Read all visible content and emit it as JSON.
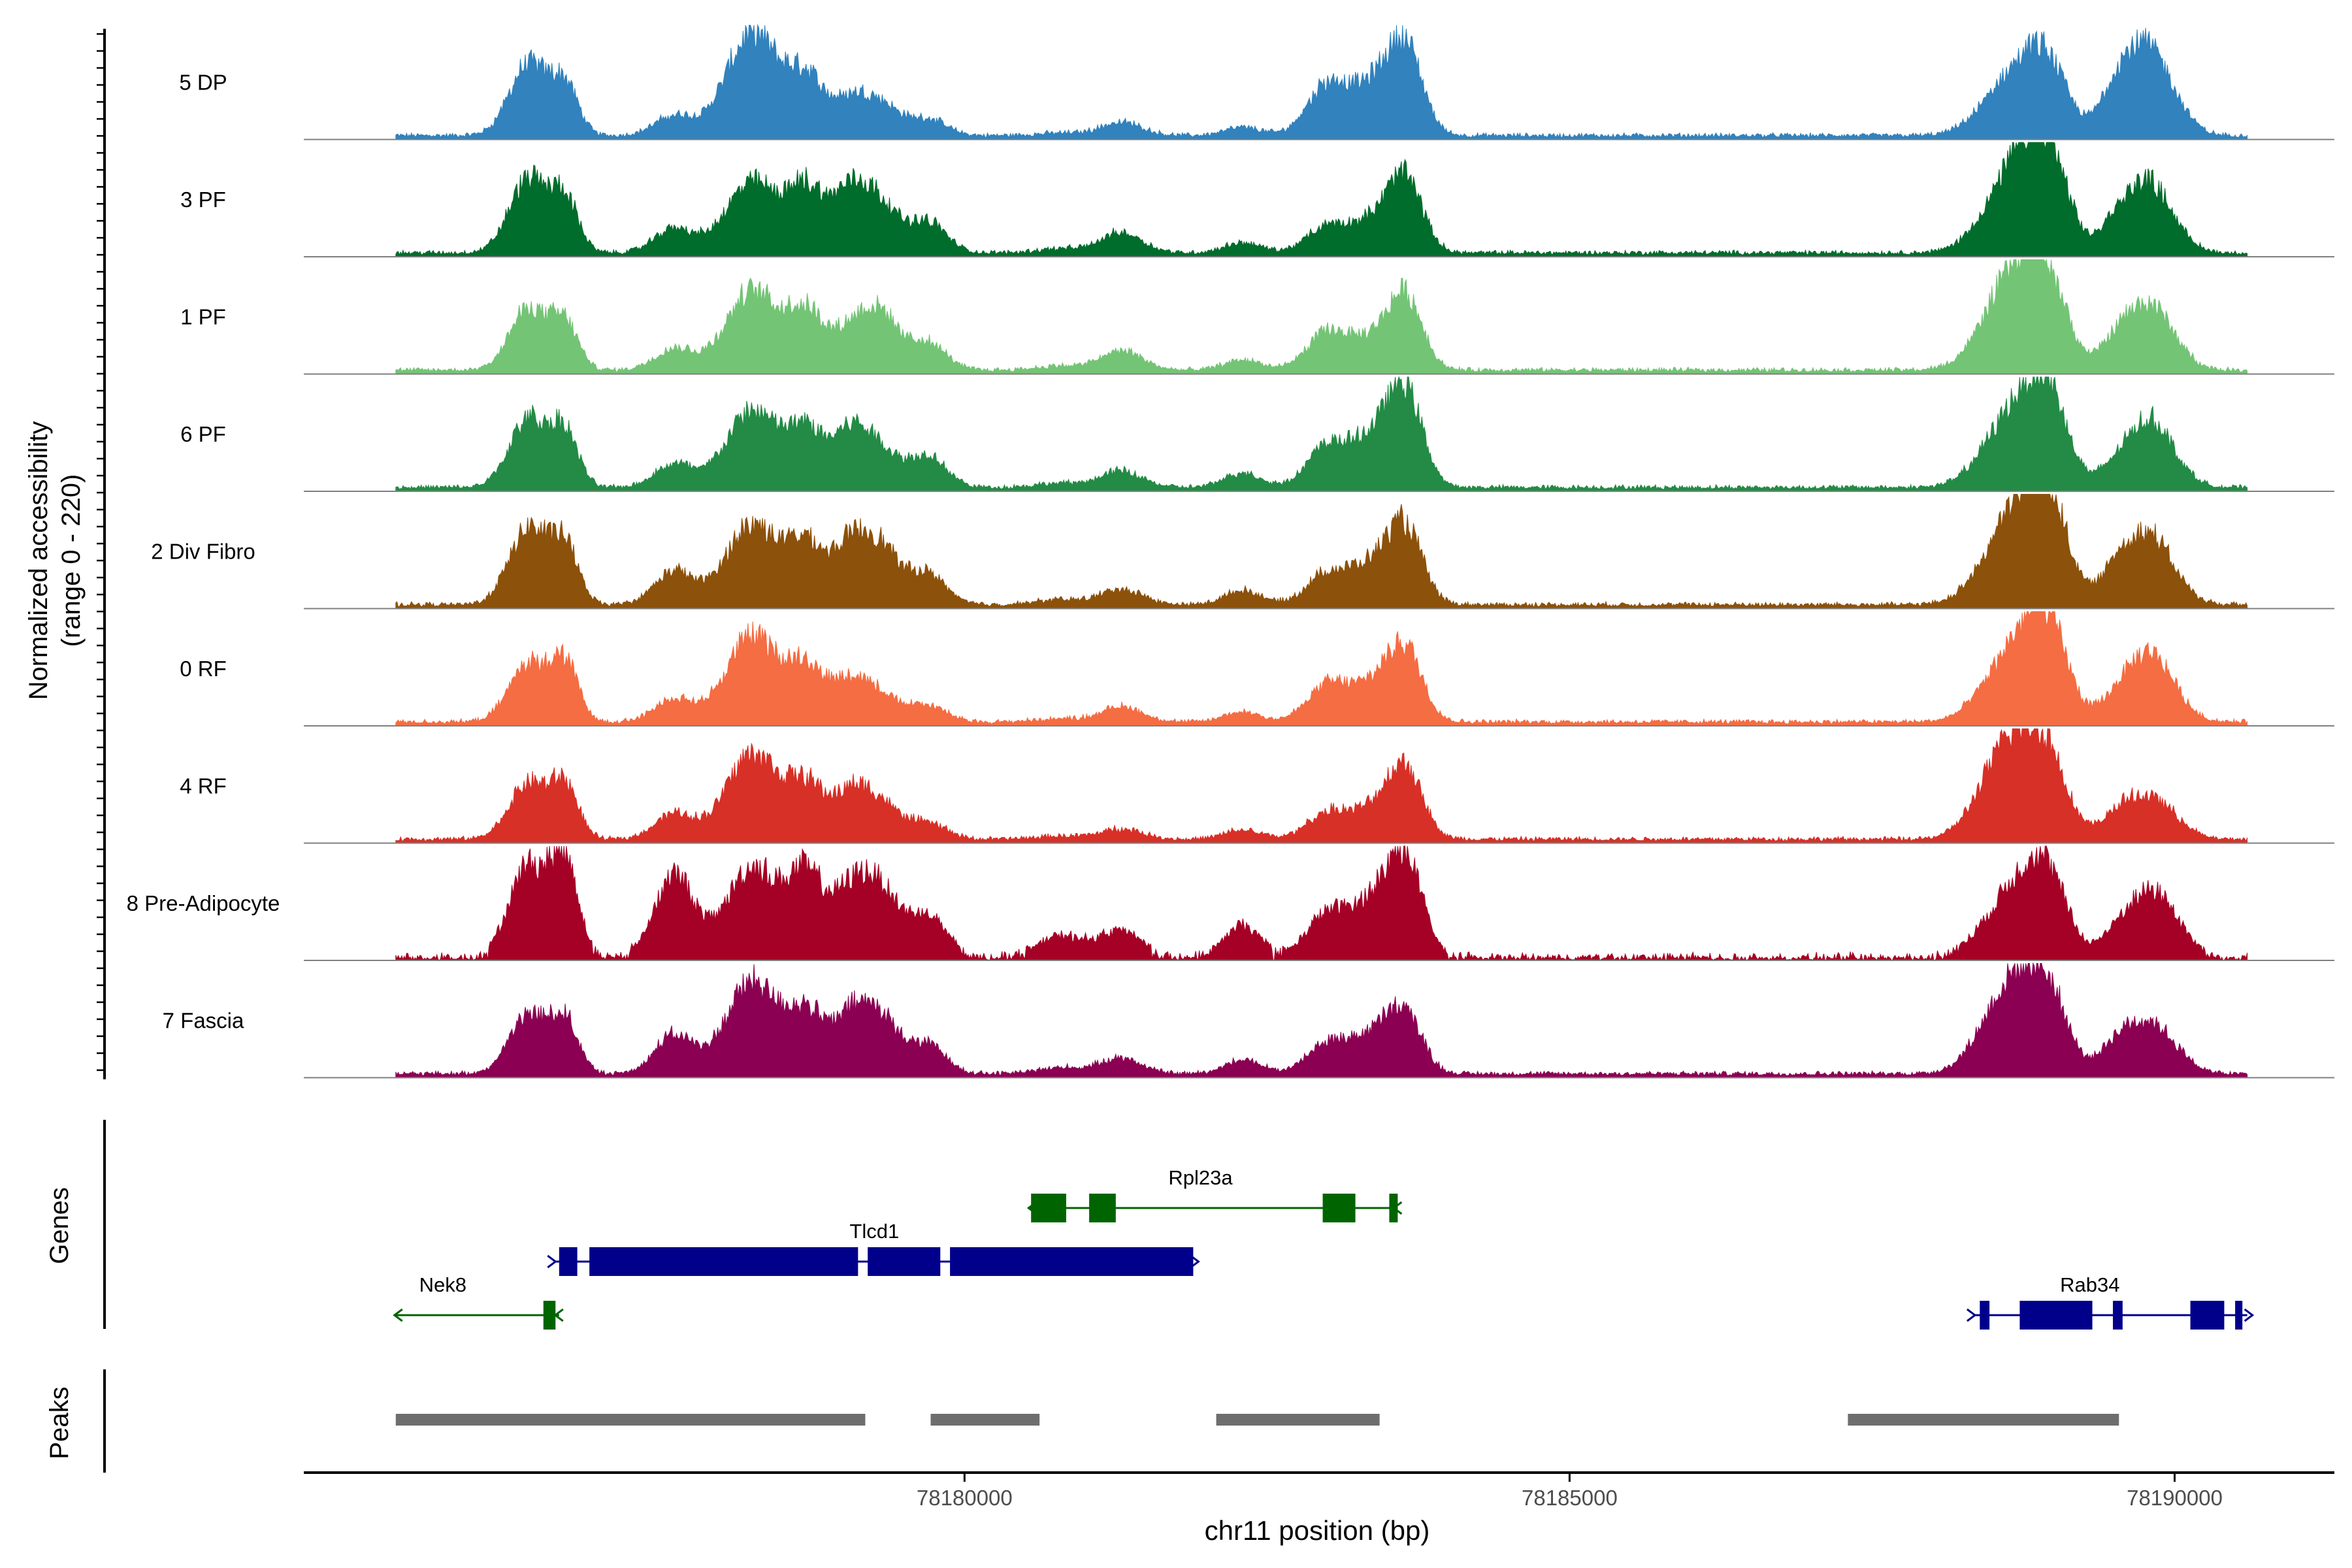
{
  "chart_data": {
    "type": "area",
    "title": "",
    "ylabel_line1": "Normalized accessibility",
    "ylabel_line2": "(range 0 - 220)",
    "xlabel": "chr11 position (bp)",
    "xlim": [
      78174540,
      78191320
    ],
    "ylim": [
      0,
      220
    ],
    "x_ticks": [
      {
        "value": 78180000,
        "label": "78180000"
      },
      {
        "value": 78185000,
        "label": "78185000"
      },
      {
        "value": 78190000,
        "label": "78190000"
      }
    ],
    "profile_range": [
      78175300,
      78190600
    ],
    "peak_centers": [
      78176400,
      78176700,
      78177600,
      78178250,
      78178700,
      78179050,
      78179300,
      78179700,
      78180800,
      78181300,
      78182300,
      78183000,
      78183400,
      78183650,
      78188600,
      78188850,
      78189000,
      78189550,
      78189800,
      78190000
    ],
    "series": [
      {
        "name": "5 DP",
        "color": "#3182BD",
        "heights": [
          140,
          92,
          38,
          200,
          105,
          58,
          62,
          32,
          5,
          26,
          16,
          98,
          94,
          150,
          85,
          92,
          68,
          115,
          130,
          40
        ]
      },
      {
        "name": "3 PF",
        "color": "#006D2C",
        "heights": [
          145,
          100,
          48,
          138,
          120,
          108,
          92,
          60,
          8,
          40,
          20,
          50,
          62,
          128,
          110,
          140,
          95,
          75,
          110,
          28
        ]
      },
      {
        "name": "1 PF",
        "color": "#74C476",
        "heights": [
          120,
          85,
          42,
          155,
          108,
          62,
          108,
          52,
          8,
          38,
          20,
          72,
          58,
          128,
          135,
          138,
          74,
          70,
          102,
          30
        ]
      },
      {
        "name": "6 PF",
        "color": "#238B45",
        "heights": [
          135,
          102,
          45,
          150,
          104,
          98,
          72,
          62,
          8,
          32,
          28,
          78,
          95,
          164,
          105,
          115,
          96,
          52,
          110,
          30
        ]
      },
      {
        "name": "2 Div Fibro",
        "color": "#8C510A",
        "heights": [
          152,
          108,
          65,
          158,
          112,
          98,
          110,
          60,
          10,
          30,
          28,
          60,
          78,
          128,
          125,
          130,
          110,
          85,
          108,
          30
        ]
      },
      {
        "name": "0 RF",
        "color": "#F46D43",
        "heights": [
          115,
          110,
          45,
          168,
          100,
          72,
          52,
          32,
          6,
          30,
          20,
          70,
          72,
          125,
          98,
          118,
          100,
          58,
          110,
          32
        ]
      },
      {
        "name": "4 RF",
        "color": "#D73027",
        "heights": [
          110,
          100,
          50,
          168,
          98,
          78,
          70,
          32,
          6,
          20,
          18,
          50,
          58,
          125,
          160,
          95,
          80,
          55,
          60,
          25
        ]
      },
      {
        "name": "8 Pre-Adipocyte",
        "color": "#A50026",
        "heights": [
          180,
          180,
          160,
          175,
          150,
          105,
          130,
          80,
          40,
          50,
          60,
          80,
          105,
          165,
          90,
          110,
          72,
          55,
          100,
          45
        ]
      },
      {
        "name": "7 Fascia",
        "color": "#8B0052",
        "heights": [
          115,
          100,
          75,
          180,
          110,
          92,
          108,
          55,
          12,
          30,
          28,
          58,
          75,
          95,
          140,
          100,
          78,
          68,
          75,
          30
        ]
      }
    ],
    "genes": [
      {
        "name": "Nek8",
        "strand": "-",
        "color": "#006400",
        "start": 78175300,
        "end": 78176650,
        "row": 3,
        "exons": [
          [
            78176520,
            78176620
          ]
        ]
      },
      {
        "name": "Tlcd1",
        "strand": "+",
        "color": "#00008B",
        "start": 78176620,
        "end": 78181890,
        "row": 2,
        "exons": [
          [
            78176650,
            78176800
          ],
          [
            78176900,
            78179120
          ],
          [
            78179200,
            78179800
          ],
          [
            78179880,
            78181890
          ]
        ]
      },
      {
        "name": "Rpl23a",
        "strand": "-",
        "color": "#006400",
        "start": 78180540,
        "end": 78183580,
        "row": 1,
        "exons": [
          [
            78180550,
            78180840
          ],
          [
            78181030,
            78181250
          ],
          [
            78182960,
            78183230
          ],
          [
            78183510,
            78183580
          ]
        ]
      },
      {
        "name": "Rab34",
        "strand": "+",
        "color": "#00008B",
        "start": 78188350,
        "end": 78190600,
        "row": 3,
        "exons": [
          [
            78188390,
            78188470
          ],
          [
            78188720,
            78189320
          ],
          [
            78189490,
            78189570
          ],
          [
            78190130,
            78190410
          ],
          [
            78190500,
            78190560
          ]
        ]
      }
    ],
    "peaks": [
      [
        78175300,
        78179180
      ],
      [
        78179720,
        78180620
      ],
      [
        78182080,
        78183430
      ],
      [
        78187300,
        78189540
      ]
    ],
    "track_labels": {
      "genes": "Genes",
      "peaks": "Peaks"
    }
  }
}
